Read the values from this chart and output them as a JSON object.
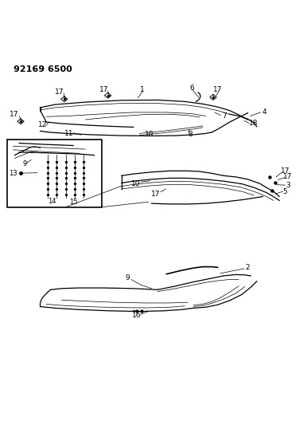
{
  "title": "92169 6500",
  "background_color": "#ffffff",
  "line_color": "#000000",
  "figure_width": 3.81,
  "figure_height": 5.33,
  "dpi": 100
}
